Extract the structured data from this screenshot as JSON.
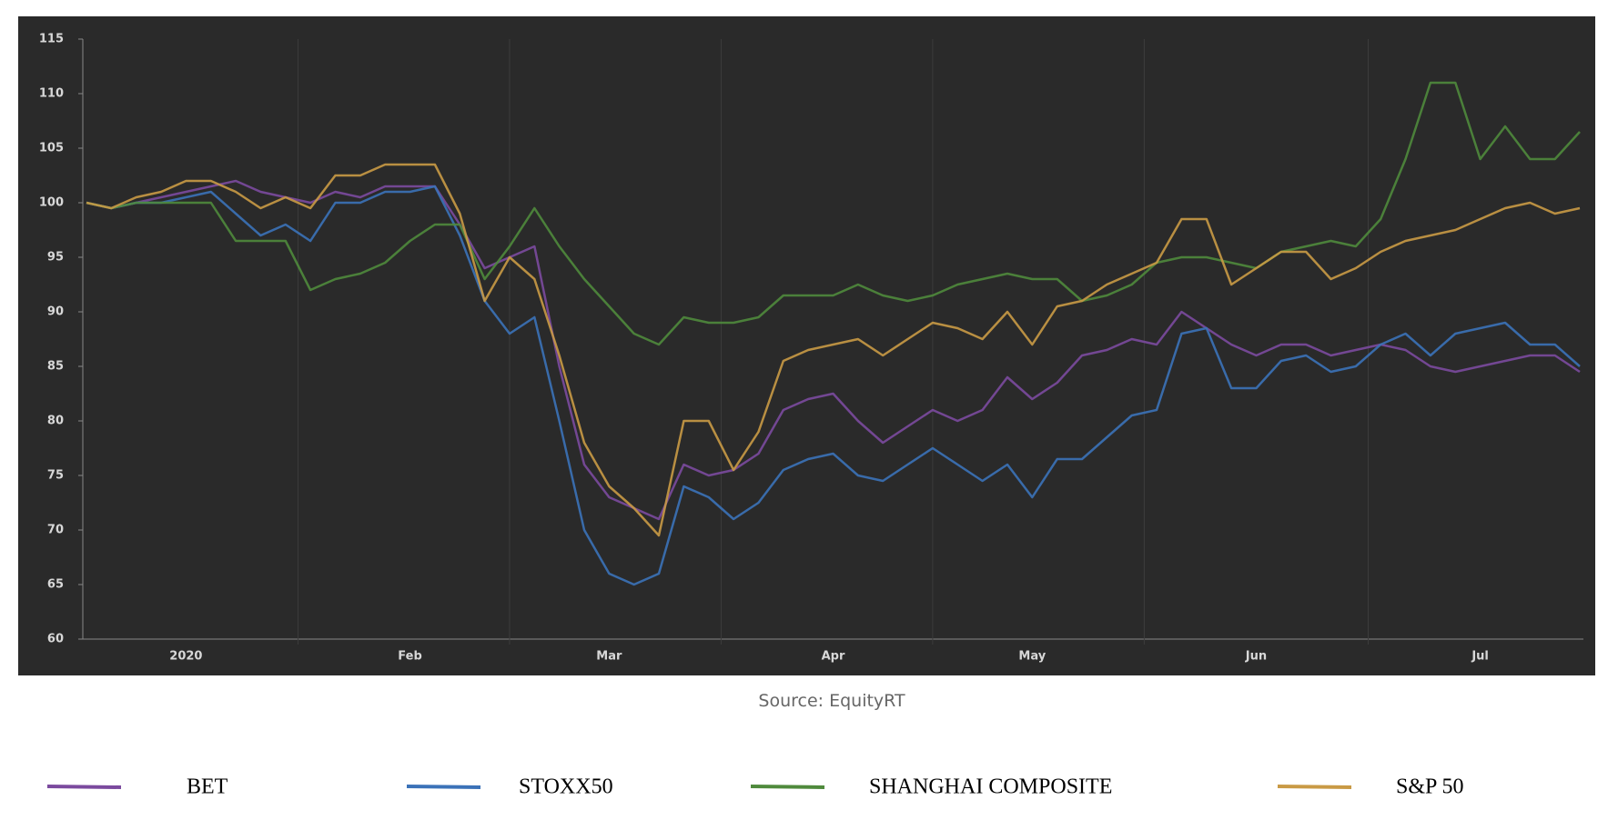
{
  "chart_data": {
    "type": "line",
    "source": "Source: EquityRT",
    "categories": [
      null,
      null,
      null,
      null,
      "2020",
      null,
      null,
      null,
      null,
      null,
      null,
      null,
      null,
      "Feb",
      null,
      null,
      null,
      null,
      null,
      null,
      null,
      "Mar",
      null,
      null,
      null,
      null,
      null,
      null,
      null,
      null,
      "Apr",
      null,
      null,
      null,
      null,
      null,
      null,
      null,
      "May",
      null,
      null,
      null,
      null,
      null,
      null,
      null,
      null,
      "Jun",
      null,
      null,
      null,
      null,
      null,
      null,
      null,
      null,
      "Jul",
      null,
      null,
      null,
      null
    ],
    "series": [
      {
        "name": "BET",
        "color": "#7b4a9e",
        "values": [
          100,
          99.5,
          100,
          100.5,
          101,
          101.5,
          102,
          101,
          100.5,
          100,
          101,
          100.5,
          101.5,
          101.5,
          101.5,
          98,
          94,
          95,
          96,
          85,
          76,
          73,
          72,
          71,
          76,
          75,
          75.5,
          77,
          81,
          82,
          82.5,
          80,
          78,
          79.5,
          81,
          80,
          81,
          84,
          82,
          83.5,
          86,
          86.5,
          87.5,
          87,
          90,
          88.5,
          87,
          86,
          87,
          87,
          86,
          86.5,
          87,
          86.5,
          85,
          84.5,
          85,
          85.5,
          86,
          86,
          84.5
        ]
      },
      {
        "name": "STOXX50",
        "color": "#3b72b8",
        "values": [
          100,
          99.5,
          100,
          100,
          100.5,
          101,
          99,
          97,
          98,
          96.5,
          100,
          100,
          101,
          101,
          101.5,
          97,
          91,
          88,
          89.5,
          80,
          70,
          66,
          65,
          66,
          74,
          73,
          71,
          72.5,
          75.5,
          76.5,
          77,
          75,
          74.5,
          76,
          77.5,
          76,
          74.5,
          76,
          73,
          76.5,
          76.5,
          78.5,
          80.5,
          81,
          88,
          88.5,
          83,
          83,
          85.5,
          86,
          84.5,
          85,
          87,
          88,
          86,
          88,
          88.5,
          89,
          87,
          87,
          85
        ]
      },
      {
        "name": "SHANGHAI COMPOSITE",
        "color": "#4f8a3c",
        "values": [
          100,
          99.5,
          100,
          100,
          100,
          100,
          96.5,
          96.5,
          96.5,
          92,
          93,
          93.5,
          94.5,
          96.5,
          98,
          98,
          93,
          96,
          99.5,
          96,
          93,
          90.5,
          88,
          87,
          89.5,
          89,
          89,
          89.5,
          91.5,
          91.5,
          91.5,
          92.5,
          91.5,
          91,
          91.5,
          92.5,
          93,
          93.5,
          93,
          93,
          91,
          91.5,
          92.5,
          94.5,
          95,
          95,
          94.5,
          94,
          95.5,
          96,
          96.5,
          96,
          98.5,
          104,
          111,
          111,
          104,
          107,
          104,
          104,
          106.5
        ]
      },
      {
        "name": "S&P 50",
        "color": "#c99a45",
        "values": [
          100,
          99.5,
          100.5,
          101,
          102,
          102,
          101,
          99.5,
          100.5,
          99.5,
          102.5,
          102.5,
          103.5,
          103.5,
          103.5,
          99,
          91,
          95,
          93,
          86,
          78,
          74,
          72,
          69.5,
          80,
          80,
          75.5,
          79,
          85.5,
          86.5,
          87,
          87.5,
          86,
          87.5,
          89,
          88.5,
          87.5,
          90,
          87,
          90.5,
          91,
          92.5,
          93.5,
          94.5,
          98.5,
          98.5,
          92.5,
          94,
          95.5,
          95.5,
          93,
          94,
          95.5,
          96.5,
          97,
          97.5,
          98.5,
          99.5,
          100,
          99,
          99.5
        ]
      }
    ],
    "ylim": [
      60,
      115
    ],
    "yticks": [
      60,
      65,
      70,
      75,
      80,
      85,
      90,
      95,
      100,
      105,
      110,
      115
    ]
  }
}
